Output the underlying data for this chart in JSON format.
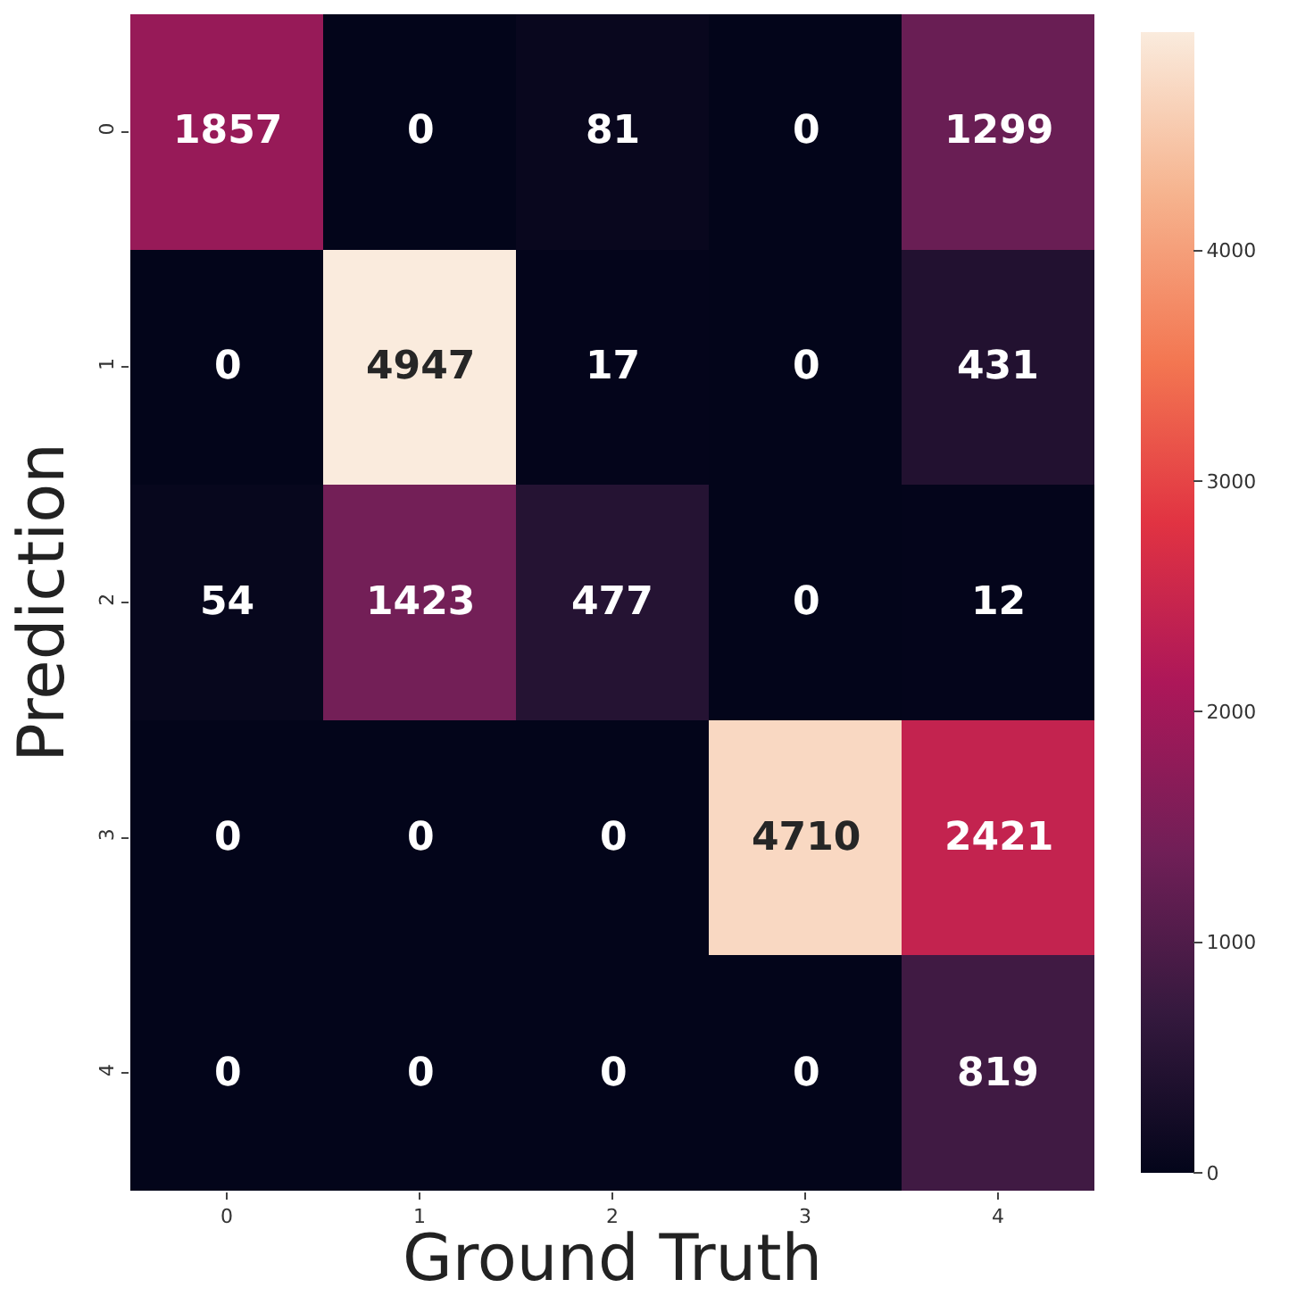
{
  "chart_data": {
    "type": "heatmap",
    "xlabel": "Ground Truth",
    "ylabel": "Prediction",
    "categories": [
      "0",
      "1",
      "2",
      "3",
      "4"
    ],
    "y_categories": [
      "0",
      "1",
      "2",
      "3",
      "4"
    ],
    "cells": [
      [
        1857,
        0,
        81,
        0,
        1299
      ],
      [
        0,
        4947,
        17,
        0,
        431
      ],
      [
        54,
        1423,
        477,
        0,
        12
      ],
      [
        0,
        0,
        0,
        4710,
        2421
      ],
      [
        0,
        0,
        0,
        0,
        819
      ]
    ],
    "clim": [
      0,
      4947
    ],
    "cticks": [
      0,
      1000,
      2000,
      3000,
      4000
    ],
    "data_labels": true
  }
}
